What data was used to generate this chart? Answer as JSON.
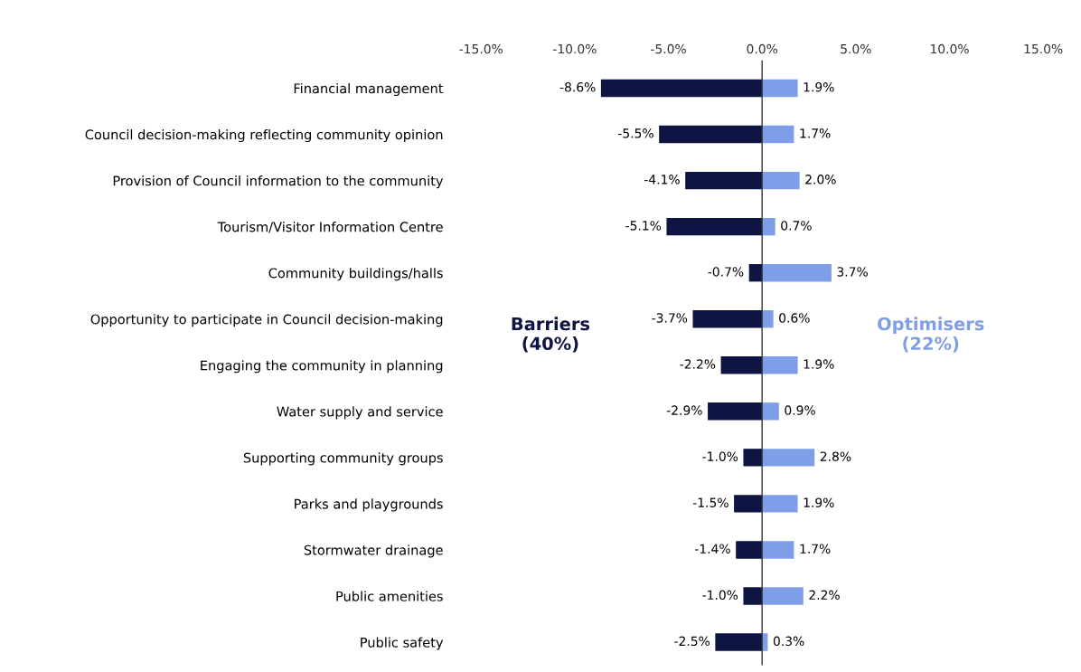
{
  "chart_data": {
    "type": "bar",
    "orientation": "horizontal",
    "stacked": true,
    "legend": false,
    "categories": [
      "Financial management",
      "Council decision-making reflecting community opinion",
      "Provision of Council information to the community",
      "Tourism/Visitor Information Centre",
      "Community buildings/halls",
      "Opportunity to participate in Council decision-making",
      "Engaging the community in planning",
      "Water supply and service",
      "Supporting community groups",
      "Parks and playgrounds",
      "Stormwater drainage",
      "Public amenities",
      "Public safety"
    ],
    "series": [
      {
        "name": "Barriers\n(40%)",
        "color": "#0e1542",
        "values": [
          -8.6,
          -5.5,
          -4.1,
          -5.1,
          -0.7,
          -3.7,
          -2.2,
          -2.9,
          -1.0,
          -1.5,
          -1.4,
          -1.0,
          -2.5
        ],
        "value_labels": [
          "-8.6%",
          "-5.5%",
          "-4.1%",
          "-5.1%",
          "-0.7%",
          "-3.7%",
          "-2.2%",
          "-2.9%",
          "-1.0%",
          "-1.5%",
          "-1.4%",
          "-1.0%",
          "-2.5%"
        ]
      },
      {
        "name": "Optimisers\n(22%)",
        "color": "#7f9ee8",
        "values": [
          1.9,
          1.7,
          2.0,
          0.7,
          3.7,
          0.6,
          1.9,
          0.9,
          2.8,
          1.9,
          1.7,
          2.2,
          0.3
        ],
        "value_labels": [
          "1.9%",
          "1.7%",
          "2.0%",
          "0.7%",
          "3.7%",
          "0.6%",
          "1.9%",
          "0.9%",
          "2.8%",
          "1.9%",
          "1.7%",
          "2.2%",
          "0.3%"
        ]
      }
    ],
    "xlim": [
      -15,
      15
    ],
    "xticks": [
      {
        "value": -15,
        "label": "-15.0%"
      },
      {
        "value": -10,
        "label": "-10.0%"
      },
      {
        "value": -5,
        "label": "-5.0%"
      },
      {
        "value": 0,
        "label": "0.0%"
      },
      {
        "value": 5,
        "label": "5.0%"
      },
      {
        "value": 10,
        "label": "10.0%"
      },
      {
        "value": 15,
        "label": "15.0%"
      }
    ],
    "ref_lines": [
      {
        "axis": "x",
        "value": 0,
        "color": "#333333",
        "line_style": "solid"
      }
    ],
    "grid": false
  }
}
